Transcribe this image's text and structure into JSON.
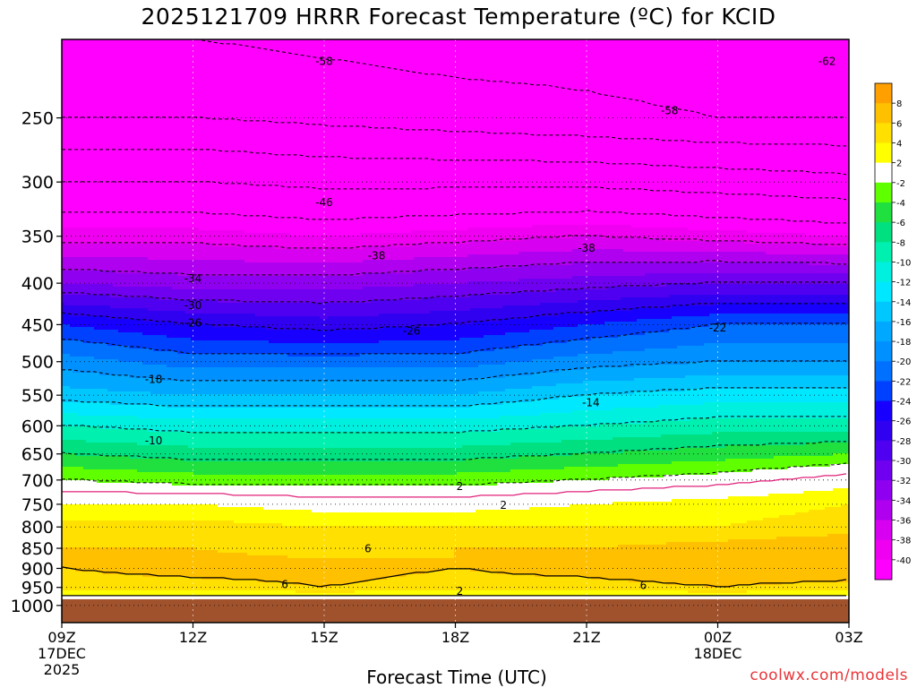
{
  "chart_data": {
    "type": "heatmap",
    "title": "2025121709 HRRR Forecast Temperature (ºC) for KCID",
    "xlabel": "Forecast Time (UTC)",
    "ylabel": "",
    "credit": "coolwx.com/models",
    "x_ticks": [
      {
        "hour": 0,
        "label": "09Z",
        "sub": [
          "17DEC",
          "2025"
        ]
      },
      {
        "hour": 3,
        "label": "12Z",
        "sub": []
      },
      {
        "hour": 6,
        "label": "15Z",
        "sub": []
      },
      {
        "hour": 9,
        "label": "18Z",
        "sub": []
      },
      {
        "hour": 12,
        "label": "21Z",
        "sub": []
      },
      {
        "hour": 15,
        "label": "00Z",
        "sub": [
          "18DEC"
        ]
      },
      {
        "hour": 18,
        "label": "03Z",
        "sub": []
      }
    ],
    "xlim": [
      0,
      18
    ],
    "y_ticks": [
      250,
      300,
      350,
      400,
      450,
      500,
      550,
      600,
      650,
      700,
      750,
      800,
      850,
      900,
      950,
      1000
    ],
    "ylim": [
      200,
      1050
    ],
    "y_scale": "log",
    "grid": true,
    "colorbar_levels": [
      8,
      6,
      4,
      2,
      -2,
      -4,
      -6,
      -8,
      -10,
      -12,
      -14,
      -16,
      -18,
      -20,
      -22,
      -24,
      -26,
      -28,
      -30,
      -32,
      -34,
      -36,
      -38,
      -40
    ],
    "colorbar_colors": [
      "#ffa000",
      "#ffc000",
      "#ffe000",
      "#ffff00",
      "#ffffff",
      "#60ff00",
      "#20e040",
      "#00e080",
      "#00f0b0",
      "#00f0e0",
      "#00e8ff",
      "#00c8ff",
      "#00a8ff",
      "#0090ff",
      "#0070ff",
      "#0040ff",
      "#1800ff",
      "#3000f0",
      "#5000f0",
      "#7000f0",
      "#9000f0",
      "#b000f0",
      "#d800f0",
      "#f000f0",
      "#ff00ff"
    ],
    "ground_color": "#a0522d",
    "temperature_field": {
      "pressure": [
        1000,
        975,
        950,
        900,
        850,
        800,
        750,
        700,
        650,
        600,
        550,
        500,
        450,
        400,
        350,
        300,
        250,
        200
      ],
      "hours": [
        0,
        3,
        6,
        9,
        12,
        15,
        18
      ],
      "values": [
        [
          1,
          1,
          1,
          1,
          1,
          1,
          1
        ],
        [
          2,
          2,
          2,
          2,
          2,
          2,
          2
        ],
        [
          5,
          5,
          6,
          5,
          5,
          6,
          5
        ],
        [
          6,
          7,
          7,
          6,
          7,
          8,
          8
        ],
        [
          6,
          6,
          5,
          6,
          6,
          7,
          8
        ],
        [
          5,
          5,
          4,
          4,
          4,
          4,
          5
        ],
        [
          2,
          2,
          1,
          1,
          2,
          3,
          4
        ],
        [
          -2,
          -3,
          -3,
          -3,
          -2,
          -1,
          1
        ],
        [
          -6,
          -7,
          -7,
          -7,
          -6,
          -5,
          -4
        ],
        [
          -10,
          -11,
          -11,
          -11,
          -10,
          -9,
          -9
        ],
        [
          -15,
          -16,
          -16,
          -16,
          -14,
          -13,
          -13
        ],
        [
          -19,
          -21,
          -21,
          -21,
          -19,
          -18,
          -18
        ],
        [
          -24,
          -26,
          -27,
          -26,
          -24,
          -22,
          -22
        ],
        [
          -32,
          -33,
          -33,
          -32,
          -31,
          -30,
          -30
        ],
        [
          -39,
          -39,
          -40,
          -39,
          -38,
          -39,
          -40
        ],
        [
          -46,
          -46,
          -47,
          -47,
          -47,
          -48,
          -49
        ],
        [
          -54,
          -54,
          -55,
          -56,
          -57,
          -58,
          -58
        ],
        [
          -58,
          -58,
          -59,
          -60,
          -60,
          -61,
          -62
        ]
      ]
    },
    "contours": [
      {
        "label": "-58",
        "hour": 6.0,
        "pressure": 213
      },
      {
        "label": "-62",
        "hour": 17.5,
        "pressure": 213
      },
      {
        "label": "-58",
        "hour": 13.9,
        "pressure": 245
      },
      {
        "label": "-46",
        "hour": 6.0,
        "pressure": 318
      },
      {
        "label": "-38",
        "hour": 7.2,
        "pressure": 370
      },
      {
        "label": "-38",
        "hour": 12.0,
        "pressure": 362
      },
      {
        "label": "-34",
        "hour": 3.0,
        "pressure": 395
      },
      {
        "label": "-30",
        "hour": 3.0,
        "pressure": 426
      },
      {
        "label": "-26",
        "hour": 3.0,
        "pressure": 448
      },
      {
        "label": "-26",
        "hour": 8.0,
        "pressure": 458
      },
      {
        "label": "-22",
        "hour": 15.0,
        "pressure": 454
      },
      {
        "label": "-18",
        "hour": 2.1,
        "pressure": 526
      },
      {
        "label": "-14",
        "hour": 12.1,
        "pressure": 562
      },
      {
        "label": "-10",
        "hour": 2.1,
        "pressure": 626
      },
      {
        "label": "2",
        "hour": 9.1,
        "pressure": 713
      },
      {
        "label": "2",
        "hour": 10.1,
        "pressure": 752
      },
      {
        "label": "6",
        "hour": 7.0,
        "pressure": 851
      },
      {
        "label": "6",
        "hour": 5.1,
        "pressure": 942
      },
      {
        "label": "6",
        "hour": 13.3,
        "pressure": 945
      },
      {
        "label": "2",
        "hour": 9.1,
        "pressure": 960
      }
    ]
  }
}
